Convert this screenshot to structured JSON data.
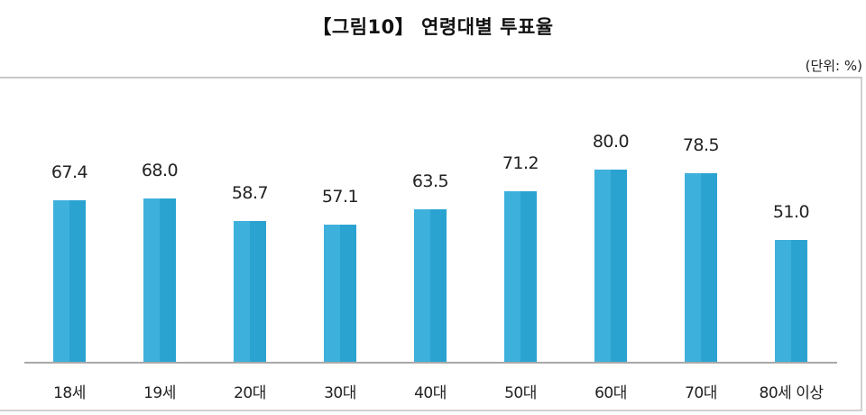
{
  "title": "【그림10】 연령대별 투표율",
  "unit_label": "(단위: %)",
  "colors": {
    "bar_light": "#3eb0dc",
    "bar_dark": "#2aa3d1",
    "axis": "#a8a8a8",
    "frame": "#d0d0d0"
  },
  "chart_data": {
    "type": "bar",
    "title": "【그림10】 연령대별 투표율",
    "unit": "(단위: %)",
    "xlabel": "",
    "ylabel": "",
    "categories": [
      "18세",
      "19세",
      "20대",
      "30대",
      "40대",
      "50대",
      "60대",
      "70대",
      "80세 이상"
    ],
    "values": [
      67.4,
      68.0,
      58.7,
      57.1,
      63.5,
      71.2,
      80.0,
      78.5,
      51.0
    ],
    "value_labels": [
      "67.4",
      "68.0",
      "58.7",
      "57.1",
      "63.5",
      "71.2",
      "80.0",
      "78.5",
      "51.0"
    ],
    "ylim": [
      0,
      80
    ],
    "grid": false,
    "legend": "none",
    "y_axis_visible": false
  }
}
